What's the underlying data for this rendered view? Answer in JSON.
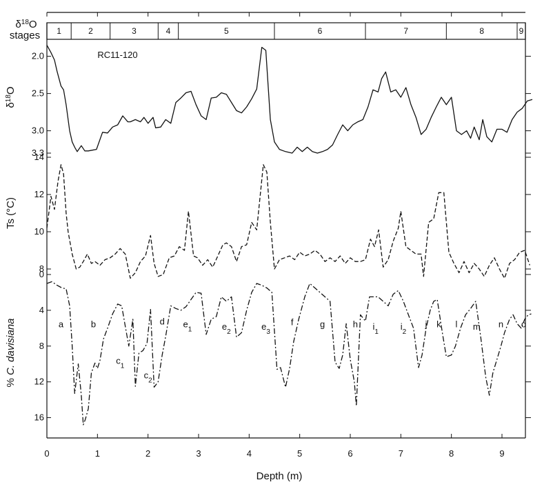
{
  "chart_data": {
    "type": "line",
    "panel_type": "multi-panel",
    "x_axis": {
      "label": "Depth (m)",
      "range": [
        0,
        9.6
      ],
      "ticks": [
        0,
        1,
        2,
        3,
        4,
        5,
        6,
        7,
        8,
        9
      ],
      "tick_labels": [
        "0",
        "1",
        "2",
        "3",
        "4",
        "5",
        "6",
        "7",
        "8",
        "9"
      ]
    },
    "stages": {
      "label_prefix": "δ",
      "label_sup": "18",
      "label_suffix": "O",
      "label_line2": "stages",
      "items": [
        {
          "label": "1",
          "start": 0,
          "end": 0.48
        },
        {
          "label": "2",
          "start": 0.48,
          "end": 1.25
        },
        {
          "label": "3",
          "start": 1.25,
          "end": 2.2
        },
        {
          "label": "4",
          "start": 2.2,
          "end": 2.6
        },
        {
          "label": "5",
          "start": 2.6,
          "end": 4.5
        },
        {
          "label": "6",
          "start": 4.5,
          "end": 6.3
        },
        {
          "label": "7",
          "start": 6.3,
          "end": 7.9
        },
        {
          "label": "8",
          "start": 7.9,
          "end": 9.3
        },
        {
          "label": "9",
          "start": 9.3,
          "end": 9.6
        }
      ]
    },
    "panels": [
      {
        "id": "d18o",
        "ylabel_prefix": "δ",
        "ylabel_sup": "18",
        "ylabel_suffix": "O",
        "core_label": "RC11-120",
        "y_range": [
          1.8,
          3.3
        ],
        "inverted": true,
        "y_ticks": [
          2.0,
          2.5,
          3.0,
          3.3
        ],
        "y_tick_labels": [
          "2.0",
          "2.5",
          "3.0",
          "3.3"
        ],
        "line_style": "solid",
        "series": {
          "x": [
            0,
            0.08,
            0.15,
            0.2,
            0.28,
            0.33,
            0.38,
            0.45,
            0.5,
            0.55,
            0.6,
            0.68,
            0.75,
            0.82,
            0.9,
            0.98,
            1.1,
            1.2,
            1.3,
            1.4,
            1.5,
            1.6,
            1.65,
            1.75,
            1.85,
            1.92,
            2.0,
            2.1,
            2.15,
            2.25,
            2.35,
            2.45,
            2.55,
            2.65,
            2.75,
            2.85,
            2.95,
            3.05,
            3.15,
            3.25,
            3.35,
            3.45,
            3.55,
            3.65,
            3.75,
            3.85,
            3.95,
            4.05,
            4.15,
            4.25,
            4.33,
            4.42,
            4.5,
            4.6,
            4.72,
            4.85,
            4.95,
            5.05,
            5.15,
            5.25,
            5.35,
            5.45,
            5.55,
            5.65,
            5.75,
            5.85,
            5.95,
            6.05,
            6.15,
            6.25,
            6.35,
            6.45,
            6.55,
            6.62,
            6.7,
            6.8,
            6.9,
            7.0,
            7.1,
            7.2,
            7.3,
            7.4,
            7.5,
            7.6,
            7.7,
            7.8,
            7.9,
            8.0,
            8.1,
            8.2,
            8.3,
            8.38,
            8.45,
            8.55,
            8.62,
            8.7,
            8.8,
            8.9,
            9.0,
            9.1,
            9.2,
            9.3,
            9.4,
            9.5,
            9.6
          ],
          "y": [
            1.85,
            1.95,
            2.05,
            2.2,
            2.4,
            2.45,
            2.65,
            3.0,
            3.15,
            3.22,
            3.28,
            3.2,
            3.27,
            3.27,
            3.26,
            3.25,
            3.02,
            3.03,
            2.95,
            2.92,
            2.8,
            2.88,
            2.88,
            2.85,
            2.88,
            2.82,
            2.9,
            2.82,
            2.96,
            2.95,
            2.85,
            2.9,
            2.62,
            2.56,
            2.49,
            2.47,
            2.65,
            2.8,
            2.85,
            2.56,
            2.55,
            2.49,
            2.51,
            2.62,
            2.73,
            2.76,
            2.68,
            2.57,
            2.44,
            1.88,
            1.92,
            2.85,
            3.15,
            3.25,
            3.28,
            3.3,
            3.22,
            3.28,
            3.22,
            3.28,
            3.3,
            3.28,
            3.25,
            3.19,
            3.05,
            2.92,
            3.0,
            2.92,
            2.88,
            2.85,
            2.68,
            2.45,
            2.48,
            2.3,
            2.21,
            2.48,
            2.45,
            2.55,
            2.42,
            2.65,
            2.82,
            3.05,
            2.98,
            2.82,
            2.68,
            2.55,
            2.65,
            2.55,
            3.0,
            3.05,
            3.0,
            3.1,
            2.95,
            3.12,
            2.85,
            3.08,
            3.15,
            2.98,
            2.98,
            3.02,
            2.85,
            2.75,
            2.7,
            2.6,
            2.58
          ]
        }
      },
      {
        "id": "ts",
        "ylabel": "Ts (°C)",
        "y_range": [
          8,
          14
        ],
        "inverted": false,
        "y_ticks": [
          8,
          10,
          12,
          14
        ],
        "y_tick_labels": [
          "8",
          "10",
          "12",
          "14"
        ],
        "line_style": "dashed",
        "series": {
          "x": [
            0,
            0.08,
            0.15,
            0.22,
            0.28,
            0.33,
            0.38,
            0.42,
            0.5,
            0.58,
            0.65,
            0.72,
            0.8,
            0.88,
            0.95,
            1.05,
            1.15,
            1.25,
            1.35,
            1.45,
            1.55,
            1.65,
            1.75,
            1.85,
            1.95,
            2.05,
            2.12,
            2.2,
            2.3,
            2.42,
            2.52,
            2.62,
            2.72,
            2.8,
            2.9,
            2.98,
            3.08,
            3.18,
            3.28,
            3.38,
            3.48,
            3.55,
            3.65,
            3.75,
            3.85,
            3.95,
            4.05,
            4.15,
            4.22,
            4.28,
            4.35,
            4.42,
            4.5,
            4.6,
            4.7,
            4.8,
            4.9,
            5.0,
            5.1,
            5.2,
            5.3,
            5.4,
            5.5,
            5.6,
            5.7,
            5.8,
            5.9,
            6.0,
            6.1,
            6.2,
            6.3,
            6.4,
            6.48,
            6.56,
            6.65,
            6.75,
            6.85,
            6.95,
            7.0,
            7.1,
            7.2,
            7.3,
            7.4,
            7.45,
            7.55,
            7.65,
            7.75,
            7.85,
            7.95,
            8.05,
            8.15,
            8.25,
            8.35,
            8.45,
            8.55,
            8.65,
            8.75,
            8.85,
            8.95,
            9.05,
            9.15,
            9.25,
            9.35,
            9.45,
            9.55
          ],
          "y": [
            10.2,
            11.9,
            11.2,
            12.7,
            13.6,
            13.1,
            11.0,
            10.0,
            8.8,
            8.0,
            8.1,
            8.4,
            8.8,
            8.3,
            8.4,
            8.2,
            8.5,
            8.6,
            8.8,
            9.1,
            8.8,
            7.5,
            7.8,
            8.4,
            8.7,
            9.8,
            8.3,
            7.6,
            7.7,
            8.6,
            8.7,
            9.2,
            9.0,
            11.1,
            8.7,
            8.6,
            8.2,
            8.5,
            8.1,
            8.7,
            9.3,
            9.4,
            9.2,
            8.4,
            9.2,
            9.3,
            10.5,
            10.1,
            12.0,
            13.6,
            13.2,
            10.5,
            8.0,
            8.5,
            8.6,
            8.7,
            8.5,
            8.9,
            8.7,
            8.8,
            9.0,
            8.8,
            8.4,
            8.6,
            8.4,
            8.7,
            8.3,
            8.6,
            8.4,
            8.4,
            8.5,
            9.6,
            9.2,
            10.1,
            8.1,
            8.5,
            9.5,
            10.2,
            11.1,
            9.2,
            9.0,
            8.8,
            8.8,
            7.6,
            10.5,
            10.7,
            12.1,
            12.1,
            8.9,
            8.3,
            7.8,
            8.4,
            7.8,
            8.3,
            8.0,
            7.6,
            8.2,
            8.6,
            8.0,
            7.5,
            8.3,
            8.5,
            8.9,
            9.0,
            8.2
          ]
        }
      },
      {
        "id": "davisiana",
        "ylabel_prefix": "% ",
        "ylabel_italic": "C. davisiana",
        "y_range": [
          0,
          17.5
        ],
        "inverted": true,
        "y_ticks": [
          0,
          4,
          8,
          12,
          16
        ],
        "y_tick_labels": [
          "0",
          "4",
          "8",
          "12",
          "16"
        ],
        "line_style": "dashdot",
        "series": {
          "x": [
            0,
            0.1,
            0.2,
            0.3,
            0.38,
            0.45,
            0.5,
            0.55,
            0.62,
            0.68,
            0.72,
            0.76,
            0.82,
            0.88,
            0.95,
            1.0,
            1.05,
            1.12,
            1.2,
            1.3,
            1.4,
            1.48,
            1.55,
            1.62,
            1.7,
            1.75,
            1.82,
            1.9,
            1.98,
            2.05,
            2.12,
            2.2,
            2.28,
            2.35,
            2.45,
            2.55,
            2.65,
            2.75,
            2.85,
            2.95,
            3.05,
            3.15,
            3.25,
            3.35,
            3.45,
            3.55,
            3.65,
            3.75,
            3.85,
            3.95,
            4.05,
            4.15,
            4.25,
            4.35,
            4.45,
            4.55,
            4.62,
            4.72,
            4.8,
            4.88,
            4.98,
            5.1,
            5.2,
            5.3,
            5.4,
            5.5,
            5.6,
            5.7,
            5.78,
            5.85,
            5.92,
            6.0,
            6.08,
            6.12,
            6.2,
            6.3,
            6.38,
            6.45,
            6.55,
            6.65,
            6.75,
            6.85,
            6.95,
            7.05,
            7.15,
            7.25,
            7.35,
            7.42,
            7.5,
            7.58,
            7.65,
            7.72,
            7.82,
            7.9,
            8.0,
            8.08,
            8.18,
            8.28,
            8.38,
            8.48,
            8.58,
            8.68,
            8.75,
            8.82,
            8.9,
            8.98,
            9.05,
            9.15,
            9.22,
            9.3,
            9.38,
            9.45,
            9.52,
            9.58
          ],
          "y": [
            1.0,
            0.8,
            1.2,
            1.5,
            1.6,
            3.5,
            8.0,
            13.3,
            10.0,
            13.5,
            16.8,
            16.2,
            15.0,
            11.0,
            9.9,
            10.5,
            9.6,
            7.2,
            6.0,
            4.4,
            3.3,
            3.5,
            5.8,
            8.0,
            5.0,
            12.5,
            8.8,
            8.5,
            7.7,
            3.9,
            12.6,
            12.0,
            9.0,
            6.9,
            3.5,
            3.8,
            4.0,
            3.6,
            2.8,
            2.0,
            2.1,
            6.7,
            5.0,
            4.7,
            2.5,
            3.0,
            2.5,
            7.0,
            6.5,
            4.0,
            2.0,
            1.0,
            1.2,
            1.5,
            2.0,
            10.6,
            10.4,
            12.6,
            10.5,
            7.5,
            5.0,
            2.5,
            1.0,
            1.5,
            2.0,
            2.5,
            3.0,
            9.8,
            10.5,
            9.0,
            5.5,
            9.5,
            12.0,
            14.7,
            4.5,
            5.2,
            2.5,
            2.5,
            2.5,
            3.0,
            3.5,
            2.2,
            1.8,
            3.0,
            4.5,
            6.0,
            10.4,
            9.0,
            6.0,
            4.0,
            3.0,
            2.8,
            6.5,
            9.2,
            9.0,
            8.0,
            6.0,
            4.5,
            3.8,
            3.0,
            7.0,
            11.5,
            13.5,
            11.0,
            9.5,
            8.0,
            6.5,
            5.0,
            4.5,
            5.5,
            6.0,
            5.0,
            4.5,
            4.4
          ]
        },
        "episodes": [
          {
            "label": "a",
            "sub": "",
            "x": 0.28,
            "y": 5.5
          },
          {
            "label": "b",
            "sub": "",
            "x": 0.92,
            "y": 5.5
          },
          {
            "label": "c",
            "sub": "1",
            "x": 1.45,
            "y": 9.6
          },
          {
            "label": "c",
            "sub": "2",
            "x": 2.0,
            "y": 11.2
          },
          {
            "label": "d",
            "sub": "",
            "x": 2.28,
            "y": 5.2
          },
          {
            "label": "e",
            "sub": "1",
            "x": 2.78,
            "y": 5.5
          },
          {
            "label": "e",
            "sub": "2",
            "x": 3.55,
            "y": 5.8
          },
          {
            "label": "e",
            "sub": "3",
            "x": 4.33,
            "y": 5.8
          },
          {
            "label": "f",
            "sub": "",
            "x": 4.85,
            "y": 5.3
          },
          {
            "label": "g",
            "sub": "",
            "x": 5.45,
            "y": 5.5
          },
          {
            "label": "h",
            "sub": "",
            "x": 6.1,
            "y": 5.5
          },
          {
            "label": "i",
            "sub": "1",
            "x": 6.5,
            "y": 5.8
          },
          {
            "label": "i",
            "sub": "2",
            "x": 7.05,
            "y": 5.8
          },
          {
            "label": "j",
            "sub": "",
            "x": 7.5,
            "y": 5.5
          },
          {
            "label": "k",
            "sub": "",
            "x": 7.75,
            "y": 5.5
          },
          {
            "label": "l",
            "sub": "",
            "x": 8.1,
            "y": 5.5
          },
          {
            "label": "m",
            "sub": "",
            "x": 8.5,
            "y": 5.8
          },
          {
            "label": "n",
            "sub": "",
            "x": 8.98,
            "y": 5.5
          },
          {
            "label": "o",
            "sub": "",
            "x": 9.43,
            "y": 5.5
          }
        ]
      }
    ],
    "grid": false,
    "legend": "none"
  }
}
